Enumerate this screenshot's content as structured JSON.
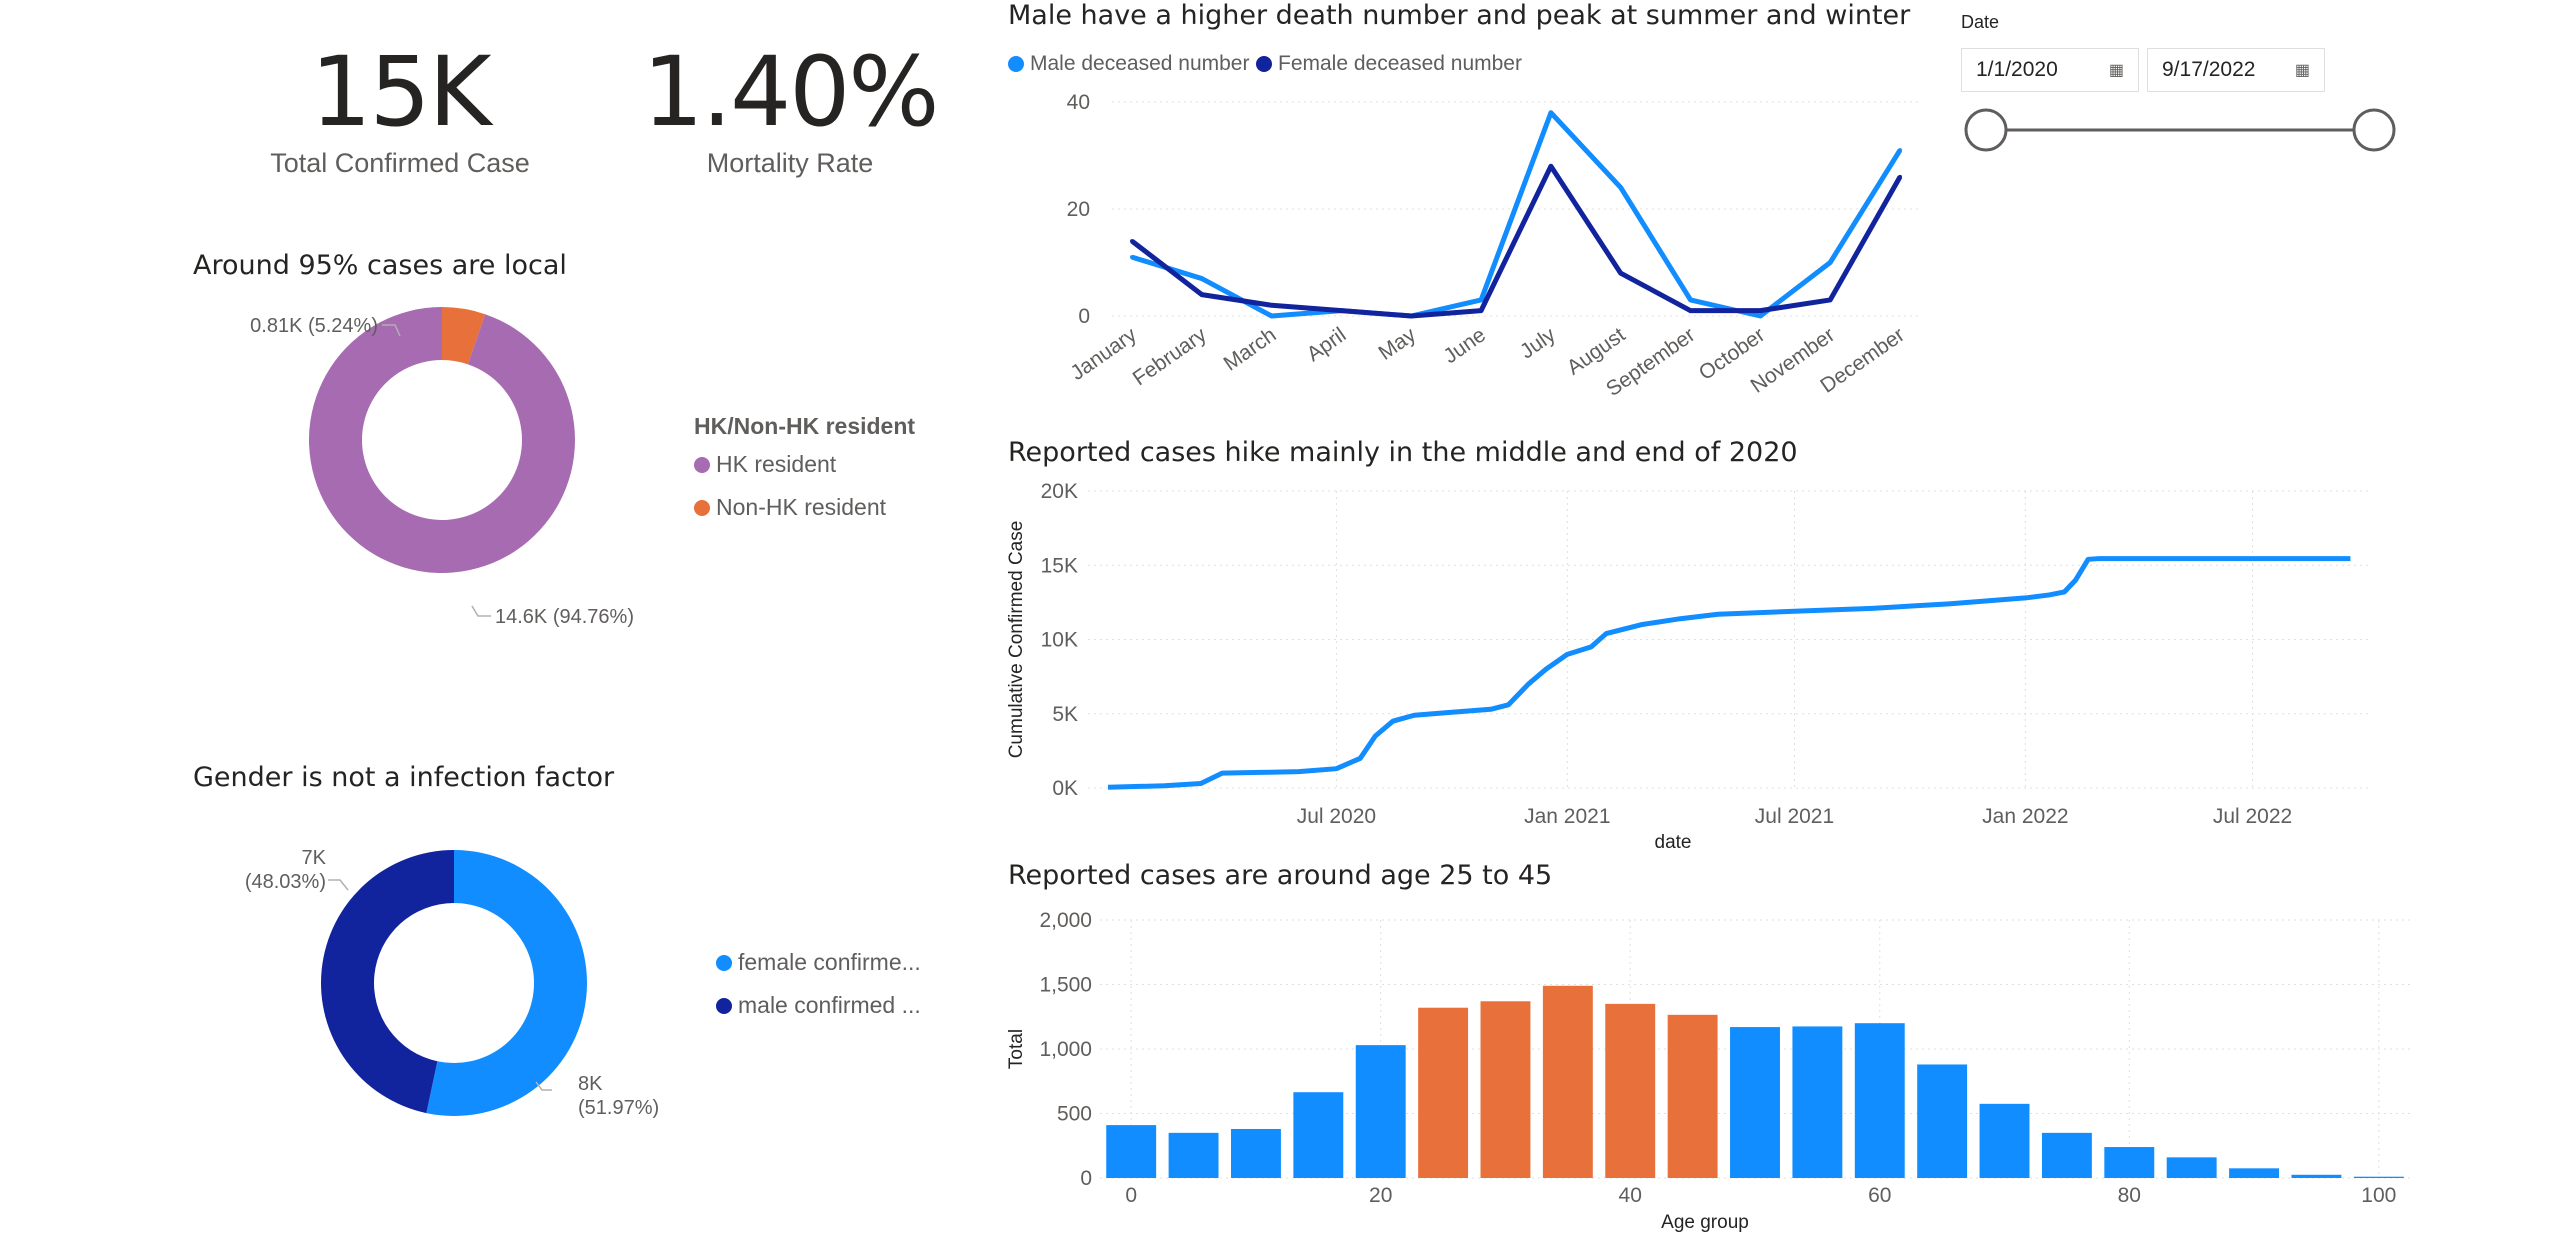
{
  "kpis": [
    {
      "value": "15K",
      "label": "Total Confirmed Case"
    },
    {
      "value": "1.40%",
      "label": "Mortality Rate"
    }
  ],
  "residency_donut": {
    "title": "Around 95% cases are local",
    "legend_title": "HK/Non-HK resident",
    "slices": [
      {
        "name": "HK resident",
        "value": 14.6,
        "percent": 94.76,
        "label": "14.6K (94.76%)",
        "color": "#a66bb0"
      },
      {
        "name": "Non-HK resident",
        "value": 0.81,
        "percent": 5.24,
        "label": "0.81K (5.24%)",
        "color": "#e8703a"
      }
    ]
  },
  "gender_donut": {
    "title": "Gender is not a infection factor",
    "slices": [
      {
        "name": "female confirme...",
        "value": 8,
        "percent": 51.97,
        "label_top": "8K",
        "label_bottom": "(51.97%)",
        "color": "#118dff"
      },
      {
        "name": "male confirmed ...",
        "value": 7,
        "percent": 48.03,
        "label_top": "7K",
        "label_bottom": "(48.03%)",
        "color": "#12239e"
      }
    ]
  },
  "date_filter": {
    "label": "Date",
    "start": "1/1/2020",
    "end": "9/17/2022",
    "calendar_icon": "calendar-icon"
  },
  "chart_data": [
    {
      "type": "line",
      "title": "Male have a higher death number and peak at summer and winter",
      "categories": [
        "January",
        "February",
        "March",
        "April",
        "May",
        "June",
        "July",
        "August",
        "September",
        "October",
        "November",
        "December"
      ],
      "ylim": [
        0,
        40
      ],
      "yticks": [
        "0",
        "20",
        "40"
      ],
      "grid": true,
      "legend_position": "top-left",
      "series": [
        {
          "name": "Male deceased number",
          "color": "#118dff",
          "values": [
            11,
            7,
            0,
            1,
            0,
            3,
            38,
            24,
            3,
            0,
            10,
            31
          ]
        },
        {
          "name": "Female deceased number",
          "color": "#12239e",
          "values": [
            14,
            4,
            2,
            1,
            0,
            1,
            28,
            8,
            1,
            1,
            3,
            26
          ]
        }
      ]
    },
    {
      "type": "line",
      "title": "Reported cases hike mainly in the middle and end of 2020",
      "xlabel": "date",
      "ylabel": "Cumulative Confirmed Case",
      "ylim": [
        0,
        20000
      ],
      "yticks": [
        "0K",
        "5K",
        "10K",
        "15K",
        "20K"
      ],
      "xticks": [
        "Jul 2020",
        "Jan 2021",
        "Jul 2021",
        "Jan 2022",
        "Jul 2022"
      ],
      "grid": true,
      "series": [
        {
          "name": "",
          "color": "#118dff",
          "x": [
            "2020-01-01",
            "2020-02-15",
            "2020-03-15",
            "2020-04-01",
            "2020-05-01",
            "2020-06-01",
            "2020-07-01",
            "2020-07-20",
            "2020-08-01",
            "2020-08-15",
            "2020-09-01",
            "2020-10-01",
            "2020-11-01",
            "2020-11-15",
            "2020-12-01",
            "2020-12-15",
            "2021-01-01",
            "2021-01-20",
            "2021-02-01",
            "2021-03-01",
            "2021-04-01",
            "2021-05-01",
            "2021-06-01",
            "2021-07-01",
            "2021-09-01",
            "2021-11-01",
            "2022-01-01",
            "2022-01-20",
            "2022-02-01",
            "2022-02-10",
            "2022-02-20",
            "2022-03-01",
            "2022-06-01",
            "2022-09-17"
          ],
          "values": [
            50,
            150,
            300,
            1000,
            1050,
            1100,
            1300,
            2000,
            3500,
            4500,
            4900,
            5100,
            5300,
            5600,
            7000,
            8000,
            9000,
            9500,
            10400,
            11000,
            11400,
            11700,
            11800,
            11900,
            12100,
            12400,
            12800,
            13000,
            13200,
            14000,
            15400,
            15450,
            15450,
            15450
          ]
        }
      ]
    },
    {
      "type": "bar",
      "title": "Reported cases are around age 25 to 45",
      "xlabel": "Age group",
      "ylabel": "Total",
      "ylim": [
        0,
        2000
      ],
      "yticks": [
        "0",
        "500",
        "1,000",
        "1,500",
        "2,000"
      ],
      "xticks": [
        "0",
        "20",
        "40",
        "60",
        "80",
        "100"
      ],
      "xlim": [
        -2.5,
        102.5
      ],
      "grid": true,
      "categories": [
        0,
        5,
        10,
        15,
        20,
        25,
        30,
        35,
        40,
        45,
        50,
        55,
        60,
        65,
        70,
        75,
        80,
        85,
        90,
        95,
        100
      ],
      "values": [
        410,
        350,
        380,
        665,
        1030,
        1320,
        1370,
        1490,
        1350,
        1265,
        1170,
        1175,
        1200,
        880,
        575,
        350,
        240,
        160,
        75,
        25,
        10
      ],
      "colors": [
        "#118dff",
        "#118dff",
        "#118dff",
        "#118dff",
        "#118dff",
        "#e8703a",
        "#e8703a",
        "#e8703a",
        "#e8703a",
        "#e8703a",
        "#118dff",
        "#118dff",
        "#118dff",
        "#118dff",
        "#118dff",
        "#118dff",
        "#118dff",
        "#118dff",
        "#118dff",
        "#118dff",
        "#118dff"
      ]
    }
  ]
}
